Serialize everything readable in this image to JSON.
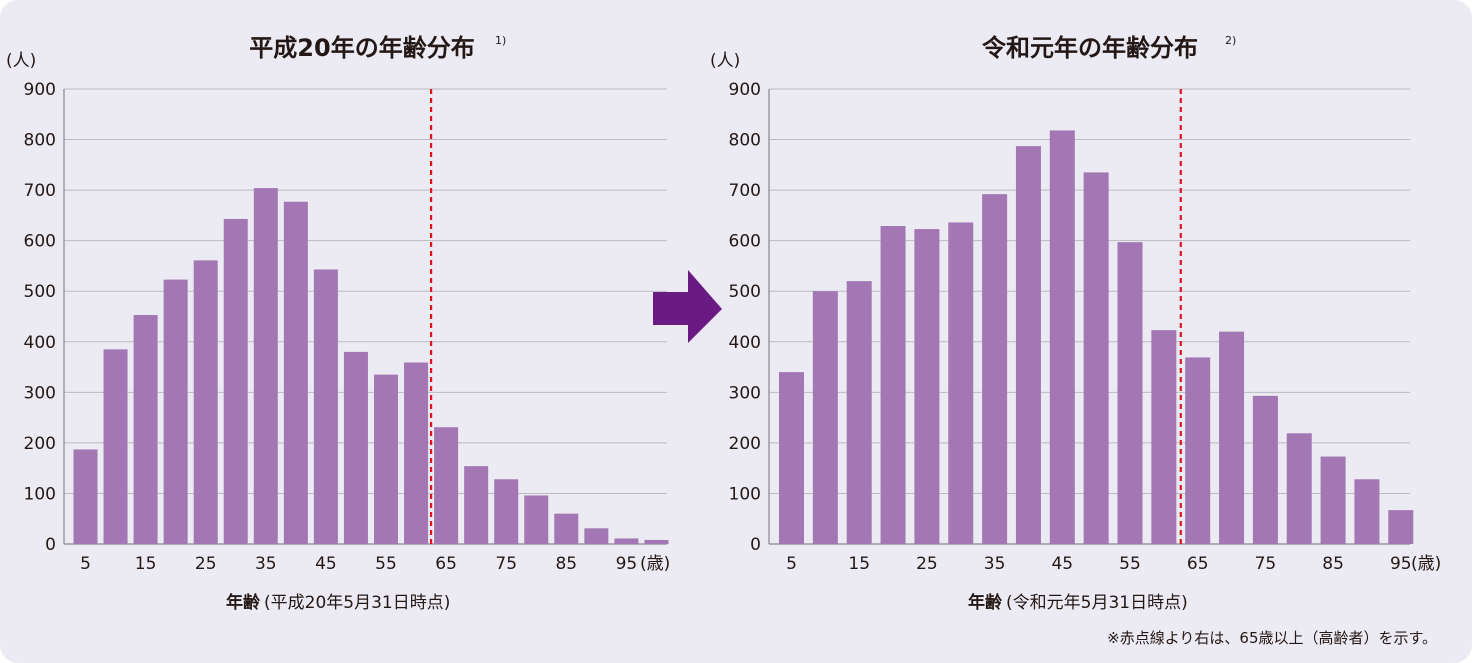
{
  "colors": {
    "bar": "#a377b3",
    "arrow": "#6a1b83",
    "refline": "#e0141e",
    "background": "#eceaf2"
  },
  "arrow_icon": "right-arrow-icon",
  "note": "※赤点線より右は、65歳以上（高齢者）を示す。",
  "chart_data": [
    {
      "type": "bar",
      "title": "平成20年の年齢分布",
      "title_sup": "1)",
      "ylabel": "(人)",
      "xunit": "(歳)",
      "xlabel_main": "年齢",
      "xlabel_sub": "(平成20年5月31日時点)",
      "ylim": [
        0,
        900
      ],
      "yticks": [
        "0",
        "100",
        "200",
        "300",
        "400",
        "500",
        "600",
        "700",
        "800",
        "900"
      ],
      "xticks": [
        "5",
        "15",
        "25",
        "35",
        "45",
        "55",
        "65",
        "75",
        "85",
        "95"
      ],
      "categories": [
        5,
        10,
        15,
        20,
        25,
        30,
        35,
        40,
        45,
        50,
        55,
        60,
        65,
        70,
        75,
        80,
        85,
        90,
        95,
        100
      ],
      "values": [
        187,
        385,
        453,
        523,
        561,
        643,
        704,
        677,
        543,
        380,
        335,
        359,
        231,
        154,
        128,
        96,
        60,
        31,
        11,
        8
      ],
      "reference_line_age": 65,
      "grid": true
    },
    {
      "type": "bar",
      "title": "令和元年の年齢分布",
      "title_sup": "2)",
      "ylabel": "(人)",
      "xunit": "(歳)",
      "xlabel_main": "年齢",
      "xlabel_sub": "(令和元年5月31日時点)",
      "ylim": [
        0,
        900
      ],
      "yticks": [
        "0",
        "100",
        "200",
        "300",
        "400",
        "500",
        "600",
        "700",
        "800",
        "900"
      ],
      "xticks": [
        "5",
        "15",
        "25",
        "35",
        "45",
        "55",
        "65",
        "75",
        "85",
        "95"
      ],
      "categories": [
        5,
        10,
        15,
        20,
        25,
        30,
        35,
        40,
        45,
        50,
        55,
        60,
        65,
        70,
        75,
        80,
        85,
        90,
        95
      ],
      "values": [
        340,
        500,
        520,
        629,
        623,
        636,
        692,
        787,
        818,
        735,
        597,
        423,
        369,
        420,
        293,
        219,
        173,
        128,
        67
      ],
      "reference_line_age": 65,
      "grid": true
    }
  ]
}
